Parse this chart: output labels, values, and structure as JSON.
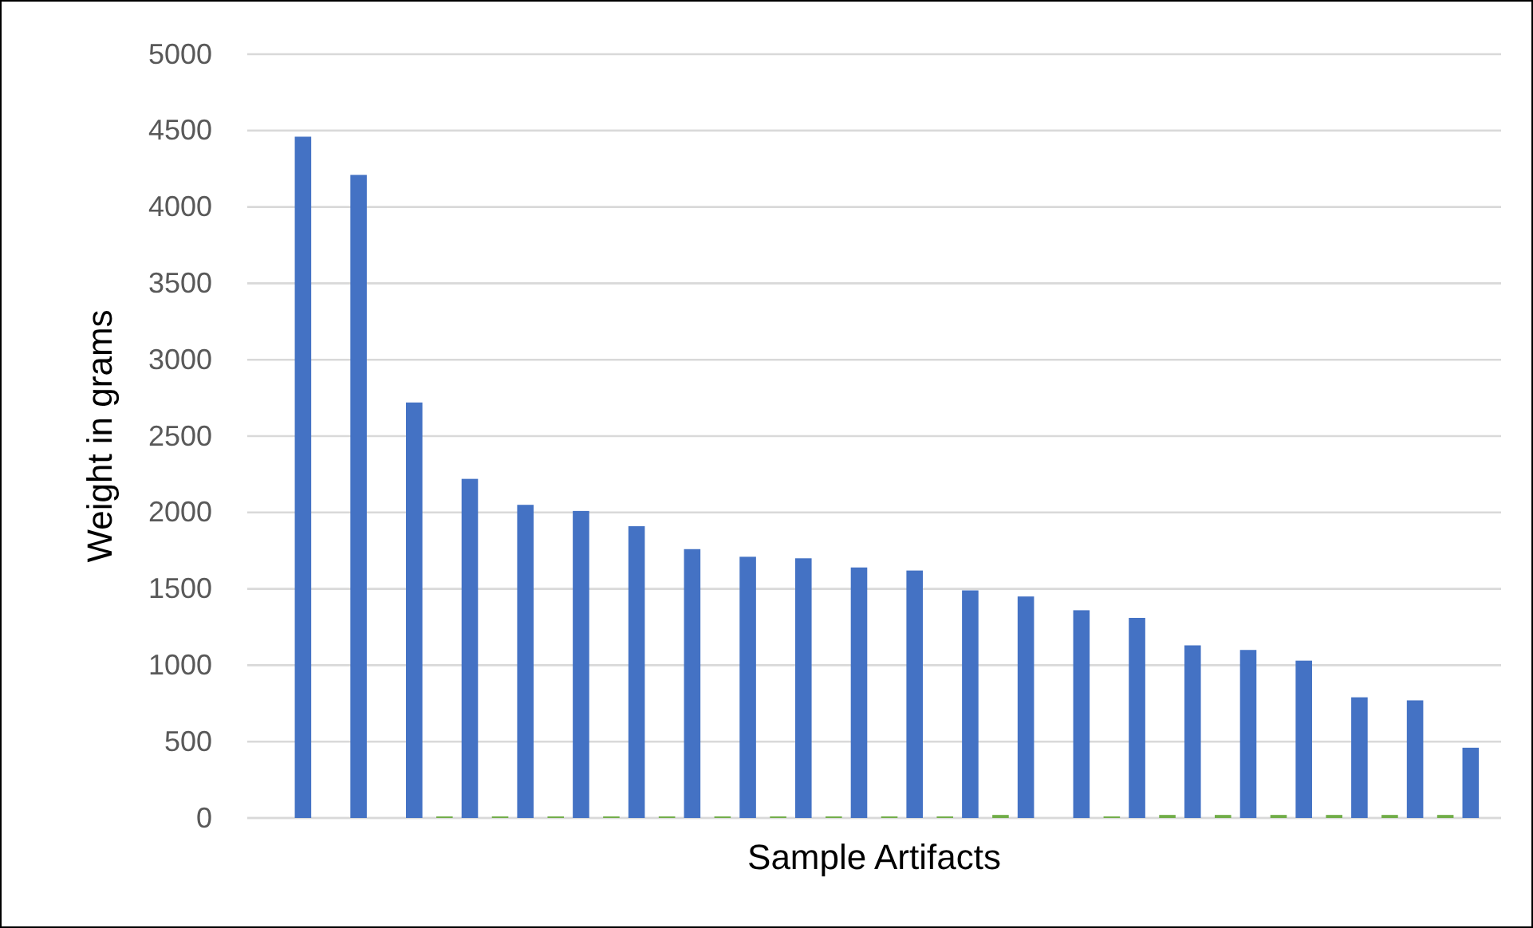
{
  "chart_data": {
    "type": "bar",
    "xlabel": "Sample Artifacts",
    "ylabel": "Weight in grams",
    "categories": [
      null,
      null,
      null,
      null,
      null,
      null,
      null,
      null,
      null,
      null,
      null,
      null,
      null,
      null,
      null,
      null,
      null,
      null,
      null,
      null,
      null,
      null
    ],
    "series": [
      {
        "color": "#70ad47",
        "values": [
          0,
          0,
          0,
          10,
          10,
          10,
          10,
          10,
          10,
          10,
          10,
          10,
          10,
          20,
          0,
          10,
          20,
          20,
          20,
          20,
          20,
          20
        ]
      },
      {
        "color": "#4472c4",
        "values": [
          4460,
          4210,
          2720,
          2220,
          2050,
          2010,
          1910,
          1760,
          1710,
          1700,
          1640,
          1620,
          1490,
          1450,
          1360,
          1310,
          1130,
          1100,
          1030,
          790,
          770,
          460
        ]
      }
    ],
    "ylim": [
      0,
      5000
    ],
    "yticks": [
      0,
      500,
      1000,
      1500,
      2000,
      2500,
      3000,
      3500,
      4000,
      4500,
      5000
    ],
    "grid": "y"
  }
}
